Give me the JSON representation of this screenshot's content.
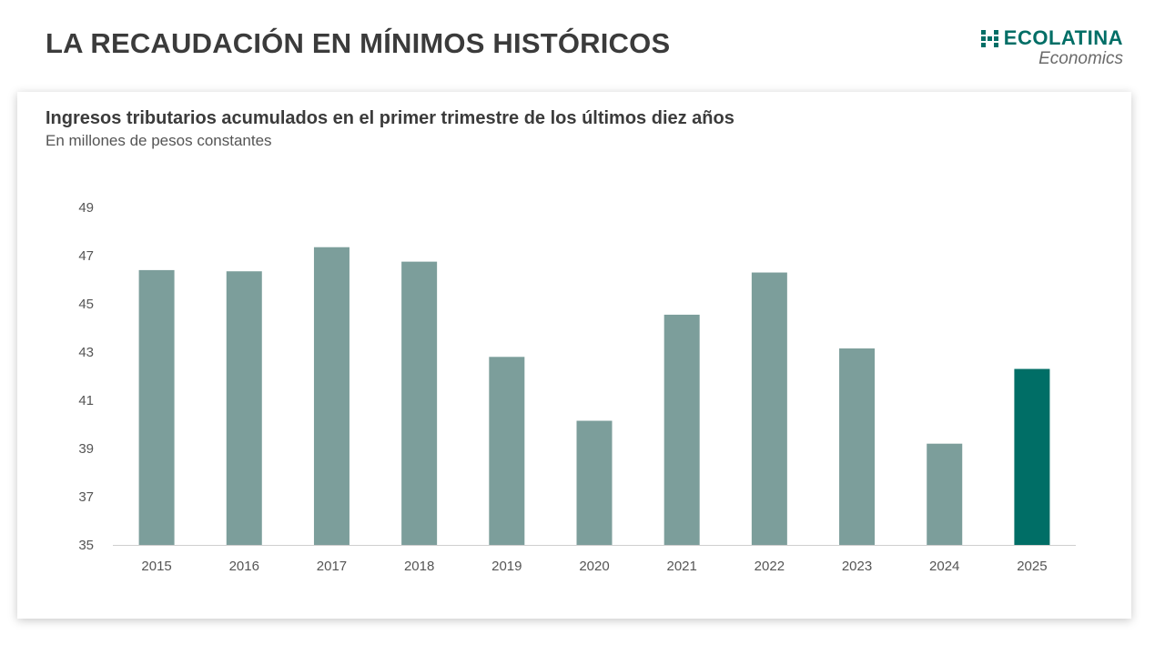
{
  "header": {
    "title": "LA RECAUDACIÓN EN MÍNIMOS HISTÓRICOS"
  },
  "logo": {
    "name": "ECOLATINA",
    "tagline": "Economics",
    "color": "#006e66"
  },
  "chart": {
    "title": "Ingresos tributarios acumulados en el primer trimestre de los últimos diez años",
    "subtitle": "En millones de pesos constantes"
  },
  "chart_data": {
    "type": "bar",
    "title": "Ingresos tributarios acumulados en el primer trimestre de los últimos diez años",
    "subtitle": "En millones de pesos constantes",
    "categories": [
      "2015",
      "2016",
      "2017",
      "2018",
      "2019",
      "2020",
      "2021",
      "2022",
      "2023",
      "2024",
      "2025"
    ],
    "values": [
      46.4,
      46.35,
      47.35,
      46.75,
      42.8,
      40.15,
      44.55,
      46.3,
      43.15,
      39.2,
      42.3
    ],
    "ylim": [
      35,
      49
    ],
    "yticks": [
      35,
      37,
      39,
      41,
      43,
      45,
      47,
      49
    ],
    "xlabel": "",
    "ylabel": "",
    "grid": false,
    "legend": "none",
    "colors": {
      "default": "#7c9e9b",
      "highlight": "#006e66",
      "highlight_category": "2025"
    }
  }
}
